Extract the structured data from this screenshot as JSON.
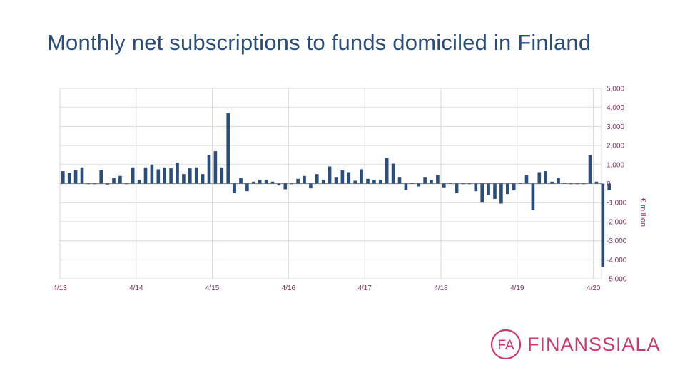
{
  "title": "Monthly net subscriptions to funds domiciled in Finland",
  "logo": {
    "mark": "FA",
    "text": "FINANSSIALA"
  },
  "colors": {
    "bar": "#2a4d7c",
    "title": "#2a4d7c",
    "tick_label": "#7a2f5b",
    "grid": "#d9d9d9",
    "logo": "#c8386a"
  },
  "chart_data": {
    "type": "bar",
    "ylabel": "€ million",
    "ylim": [
      -5000,
      5000
    ],
    "yticks": [
      5000,
      4000,
      3000,
      2000,
      1000,
      0,
      -1000,
      -2000,
      -3000,
      -4000,
      -5000
    ],
    "ytick_labels": [
      "5,000",
      "4,000",
      "3,000",
      "2,000",
      "1,000",
      "0",
      "-1,000",
      "-2,000",
      "-3,000",
      "-4,000",
      "-5,000"
    ],
    "xtick_labels": [
      "4/13",
      "4/14",
      "4/15",
      "4/16",
      "4/17",
      "4/18",
      "4/19",
      "4/20"
    ],
    "xtick_month_index": [
      0,
      12,
      24,
      36,
      48,
      60,
      72,
      84
    ],
    "grid": true,
    "legend": "none",
    "start": "4/13",
    "values": [
      650,
      550,
      700,
      850,
      0,
      0,
      700,
      -50,
      300,
      400,
      0,
      850,
      200,
      850,
      1000,
      750,
      850,
      800,
      1100,
      500,
      800,
      850,
      500,
      1500,
      1700,
      850,
      3700,
      -500,
      300,
      -400,
      100,
      200,
      200,
      100,
      -100,
      -300,
      0,
      250,
      400,
      -250,
      500,
      200,
      900,
      350,
      700,
      600,
      150,
      750,
      250,
      200,
      200,
      1350,
      1050,
      350,
      -350,
      50,
      -150,
      350,
      200,
      450,
      -200,
      50,
      -500,
      0,
      0,
      -400,
      -1000,
      -600,
      -800,
      -1050,
      -550,
      -350,
      50,
      450,
      -1400,
      600,
      650,
      100,
      300,
      50,
      0,
      0,
      0,
      1500,
      100,
      -4400,
      -350
    ]
  }
}
